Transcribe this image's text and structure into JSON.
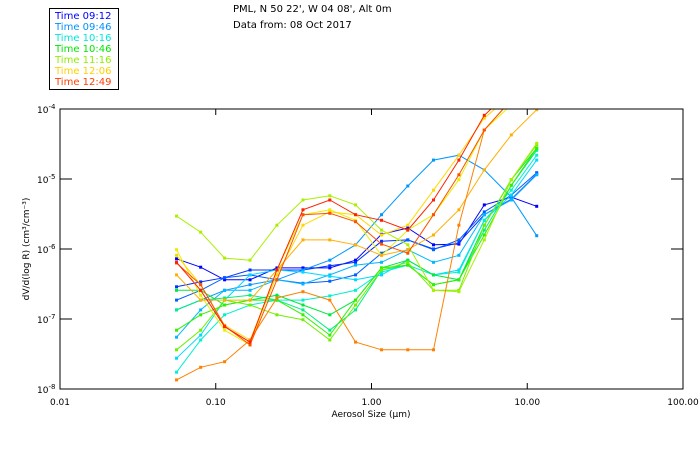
{
  "header": {
    "line1": "PML, N 50 22', W 04 08', Alt 0m",
    "line2": "Data from: 08 Oct 2017"
  },
  "legend": [
    {
      "label": "Time 09:12",
      "color": "#0000ff"
    },
    {
      "label": "Time 09:46",
      "color": "#0090ff"
    },
    {
      "label": "Time 10:16",
      "color": "#00e8d8"
    },
    {
      "label": "Time 10:46",
      "color": "#00e800"
    },
    {
      "label": "Time 11:16",
      "color": "#90ee00"
    },
    {
      "label": "Time 12:06",
      "color": "#ffd000"
    },
    {
      "label": "Time 12:49",
      "color": "#ff4000"
    }
  ],
  "chart_data": {
    "type": "line",
    "xscale": "log",
    "yscale": "log",
    "xlim": [
      0.01,
      100
    ],
    "ylim": [
      1e-08,
      0.0001
    ],
    "xlabel": "Aerosol Size (μm)",
    "ylabel": "dV/d(log R) (cm³/cm⁻³)",
    "xticks": [
      "0.01",
      "0.10",
      "1.00",
      "10.00",
      "100.00"
    ],
    "yticks": [
      {
        "base": "10",
        "exp": "-4"
      },
      {
        "base": "10",
        "exp": "-5"
      },
      {
        "base": "10",
        "exp": "-6"
      },
      {
        "base": "10",
        "exp": "-7"
      },
      {
        "base": "10",
        "exp": "-8"
      }
    ],
    "x": [
      0.056,
      0.08,
      0.114,
      0.166,
      0.247,
      0.363,
      0.54,
      0.79,
      1.16,
      1.71,
      2.5,
      3.64,
      5.3,
      7.9,
      11.5
    ],
    "series_note": "values stored as log10(dV/dlogR)",
    "series": [
      {
        "color": "#0000ff",
        "log10": [
          -6.14,
          -6.26,
          -6.44,
          -6.44,
          -6.27,
          -6.27,
          -6.27,
          -6.16,
          -5.79,
          -5.7,
          -5.94,
          -5.93,
          -5.37,
          -5.26,
          -5.39
        ]
      },
      {
        "color": "#0030ff",
        "log10": [
          -6.54,
          -6.47,
          -6.41,
          -6.3,
          -6.3,
          -6.3,
          -6.24,
          -6.19,
          -5.89,
          -5.87,
          -6.0,
          -5.91,
          -5.51,
          -5.29,
          -4.93
        ]
      },
      {
        "color": "#0060ff",
        "log10": [
          -6.73,
          -6.59,
          -6.41,
          -6.37,
          -6.44,
          -6.49,
          -6.46,
          -6.37,
          -6.06,
          -5.87,
          -6.01,
          -5.87,
          -5.47,
          -5.23,
          -4.91
        ]
      },
      {
        "color": "#0098ff",
        "log10": [
          -6.87,
          -6.73,
          -6.59,
          -6.51,
          -6.44,
          -6.3,
          -6.16,
          -5.94,
          -5.51,
          -5.1,
          -4.73,
          -4.66,
          -4.87,
          -5.26,
          -5.81
        ]
      },
      {
        "color": "#00b8ff",
        "log10": [
          -7.26,
          -6.87,
          -6.59,
          -6.59,
          -6.44,
          -6.5,
          -6.37,
          -6.23,
          -6.19,
          -6.01,
          -6.19,
          -6.09,
          -5.51,
          -5.3,
          -4.94
        ]
      },
      {
        "color": "#00d8ff",
        "log10": [
          -7.56,
          -7.23,
          -6.73,
          -6.37,
          -6.3,
          -6.33,
          -6.39,
          -6.44,
          -6.37,
          -6.16,
          -6.37,
          -6.3,
          -5.59,
          -5.23,
          -4.73
        ]
      },
      {
        "color": "#00f0d0",
        "log10": [
          -7.76,
          -7.3,
          -6.94,
          -6.8,
          -6.73,
          -6.73,
          -6.67,
          -6.59,
          -6.33,
          -6.23,
          -6.37,
          -6.33,
          -5.59,
          -5.16,
          -4.66
        ]
      },
      {
        "color": "#00f080",
        "log10": [
          -6.87,
          -6.73,
          -6.7,
          -6.66,
          -6.73,
          -6.87,
          -7.16,
          -6.87,
          -6.3,
          -6.23,
          -6.51,
          -6.44,
          -5.73,
          -5.09,
          -4.59
        ]
      },
      {
        "color": "#00e840",
        "log10": [
          -6.59,
          -6.59,
          -6.8,
          -6.73,
          -6.66,
          -6.8,
          -6.94,
          -6.73,
          -6.27,
          -6.16,
          -6.37,
          -6.44,
          -5.66,
          -5.01,
          -4.56
        ]
      },
      {
        "color": "#30f000",
        "log10": [
          -7.16,
          -6.94,
          -6.8,
          -6.73,
          -6.73,
          -6.94,
          -7.23,
          -6.73,
          -6.27,
          -6.23,
          -6.51,
          -6.44,
          -5.8,
          -5.09,
          -4.56
        ]
      },
      {
        "color": "#70f000",
        "log10": [
          -7.44,
          -7.16,
          -6.73,
          -6.8,
          -6.94,
          -7.01,
          -7.3,
          -6.8,
          -6.3,
          -6.19,
          -6.59,
          -6.59,
          -5.66,
          -5.01,
          -4.51
        ]
      },
      {
        "color": "#a8f000",
        "log10": [
          -5.53,
          -5.76,
          -6.13,
          -6.16,
          -5.66,
          -5.3,
          -5.24,
          -5.37,
          -5.73,
          -5.94,
          -6.59,
          -6.61,
          -5.87,
          -5.01,
          -4.49
        ]
      },
      {
        "color": "#e8f000",
        "log10": [
          -6.01,
          -6.66,
          -7.16,
          -7.37,
          -6.3,
          -5.51,
          -5.44,
          -5.59,
          -6.09,
          -5.73,
          -5.51,
          -5.01,
          -4.3,
          -3.94,
          -3.73
        ]
      },
      {
        "color": "#ffd800",
        "log10": [
          -6.09,
          -6.51,
          -7.09,
          -7.3,
          -6.37,
          -5.66,
          -5.47,
          -5.51,
          -5.8,
          -5.66,
          -5.16,
          -4.66,
          -4.13,
          -3.8,
          -3.73
        ]
      },
      {
        "color": "#ffb000",
        "log10": [
          -6.37,
          -6.73,
          -6.73,
          -6.73,
          -6.3,
          -5.87,
          -5.87,
          -5.94,
          -6.09,
          -6.01,
          -5.8,
          -5.44,
          -4.87,
          -4.37,
          -4.01
        ]
      },
      {
        "color": "#ff8000",
        "log10": [
          -7.87,
          -7.69,
          -7.61,
          -7.3,
          -6.7,
          -6.61,
          -6.73,
          -7.33,
          -7.44,
          -7.44,
          -7.44,
          -5.66,
          -4.3,
          -3.87,
          -3.66
        ]
      },
      {
        "color": "#ff5000",
        "log10": [
          -6.2,
          -6.51,
          -7.1,
          -7.37,
          -6.44,
          -5.51,
          -5.49,
          -5.61,
          -5.93,
          -6.06,
          -5.51,
          -4.94,
          -4.3,
          -3.87,
          -3.66
        ]
      },
      {
        "color": "#ff2000",
        "log10": [
          -6.19,
          -6.59,
          -7.11,
          -7.33,
          -6.3,
          -5.44,
          -5.3,
          -5.51,
          -5.59,
          -5.73,
          -5.3,
          -4.73,
          -4.09,
          -3.73,
          -3.59
        ]
      }
    ]
  }
}
